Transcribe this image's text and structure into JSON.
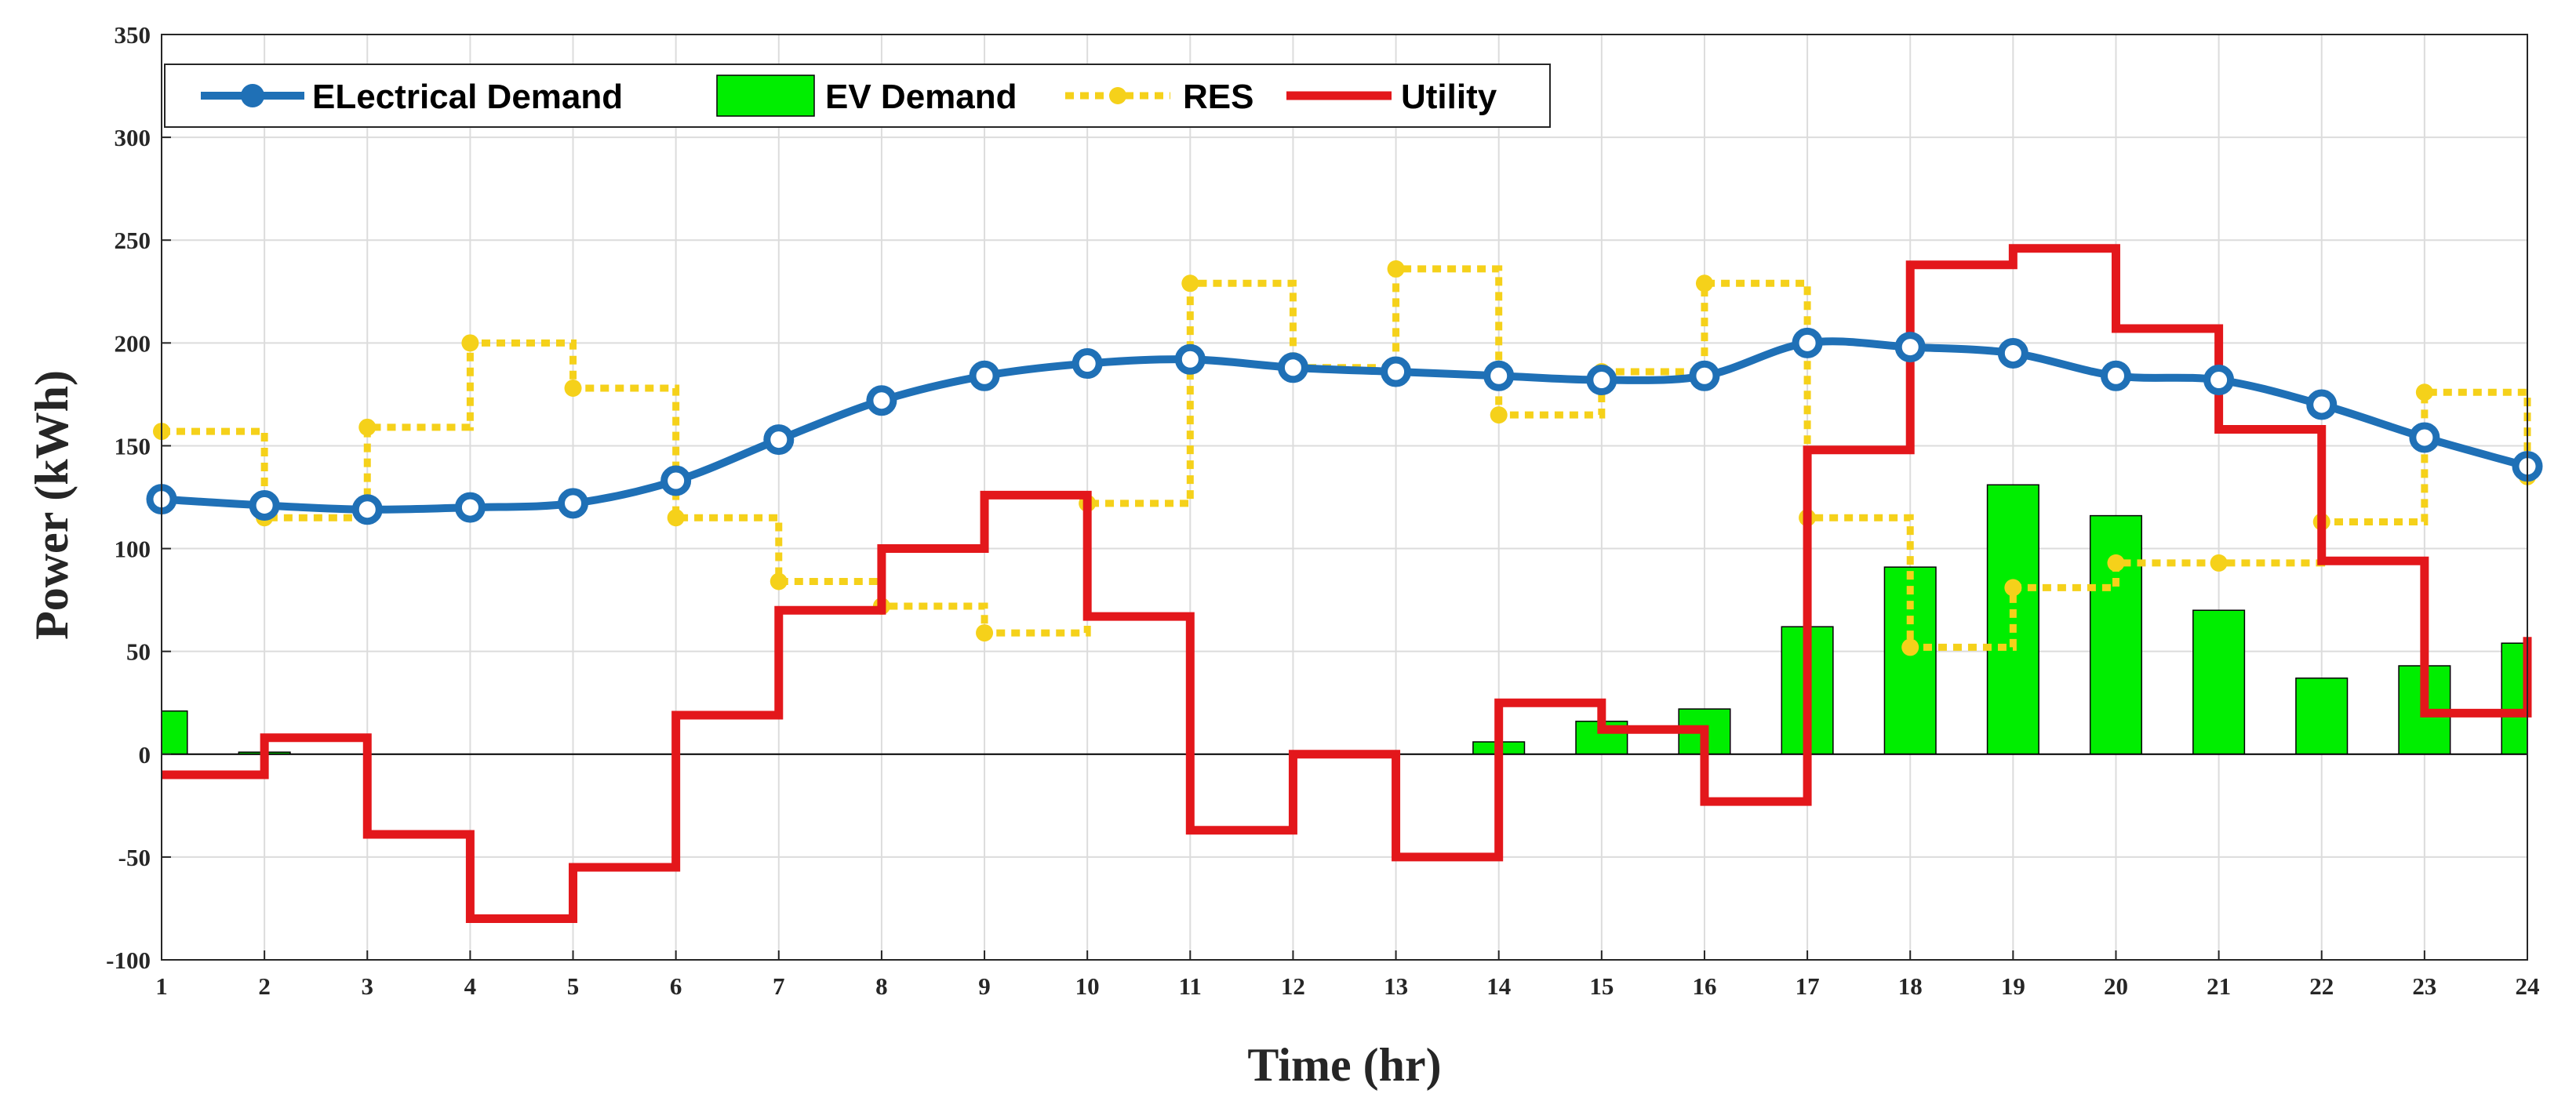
{
  "chart_data": {
    "type": "bar+line",
    "title": "",
    "xlabel": "Time (hr)",
    "ylabel": "Power (kWh)",
    "x": [
      1,
      2,
      3,
      4,
      5,
      6,
      7,
      8,
      9,
      10,
      11,
      12,
      13,
      14,
      15,
      16,
      17,
      18,
      19,
      20,
      21,
      22,
      23,
      24
    ],
    "x_ticks": [
      1,
      2,
      3,
      4,
      5,
      6,
      7,
      8,
      9,
      10,
      11,
      12,
      13,
      14,
      15,
      16,
      17,
      18,
      19,
      20,
      21,
      22,
      23,
      24
    ],
    "xlim": [
      1,
      24
    ],
    "ylim": [
      -100,
      350
    ],
    "y_ticks": [
      -100,
      -50,
      0,
      50,
      100,
      150,
      200,
      250,
      300,
      350
    ],
    "grid": true,
    "legend_position": "top-left",
    "series": [
      {
        "name": "ELectrical Demand",
        "style": "line-with-circle-markers",
        "color": "#1f70b6",
        "values": [
          124,
          121,
          119,
          120,
          122,
          133,
          153,
          172,
          184,
          190,
          192,
          188,
          186,
          184,
          182,
          184,
          200,
          198,
          195,
          184,
          182,
          170,
          154,
          140
        ]
      },
      {
        "name": "EV Demand",
        "style": "bar",
        "color": "#00ee00",
        "values": [
          21,
          1,
          0,
          0,
          0,
          0,
          0,
          0,
          0,
          0,
          0,
          0,
          0,
          6,
          16,
          22,
          62,
          91,
          131,
          116,
          70,
          37,
          43,
          54
        ]
      },
      {
        "name": "RES",
        "style": "dotted-stairs-with-markers",
        "color": "#f5d11a",
        "values": [
          157,
          115,
          159,
          200,
          178,
          115,
          84,
          72,
          59,
          122,
          229,
          188,
          236,
          165,
          186,
          229,
          115,
          52,
          81,
          93,
          93,
          113,
          176,
          135
        ]
      },
      {
        "name": "Utility",
        "style": "solid-stairs",
        "color": "#e3171b",
        "values": [
          -10,
          8,
          -39,
          -80,
          -55,
          19,
          70,
          100,
          126,
          67,
          -37,
          0,
          -50,
          25,
          12,
          -23,
          148,
          238,
          246,
          207,
          158,
          94,
          20,
          57
        ]
      }
    ]
  }
}
